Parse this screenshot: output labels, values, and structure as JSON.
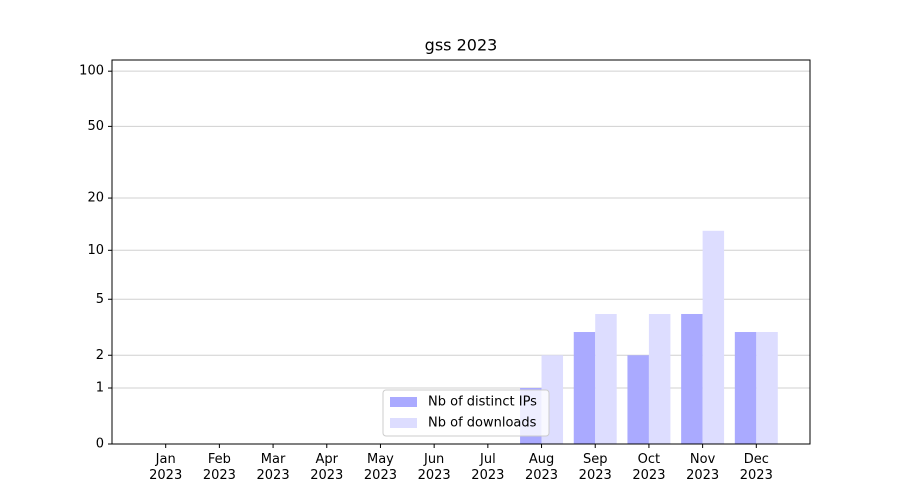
{
  "chart_data": {
    "type": "bar",
    "title": "gss 2023",
    "categories": [
      "Jan\n2023",
      "Feb\n2023",
      "Mar\n2023",
      "Apr\n2023",
      "May\n2023",
      "Jun\n2023",
      "Jul\n2023",
      "Aug\n2023",
      "Sep\n2023",
      "Oct\n2023",
      "Nov\n2023",
      "Dec\n2023"
    ],
    "series": [
      {
        "name": "Nb of distinct IPs",
        "color": "#aaaaff",
        "values": [
          0,
          0,
          0,
          0,
          0,
          0,
          0,
          1,
          3,
          2,
          4,
          3
        ]
      },
      {
        "name": "Nb of downloads",
        "color": "#ddddff",
        "values": [
          0,
          0,
          0,
          0,
          0,
          0,
          0,
          2,
          4,
          4,
          13,
          3
        ]
      }
    ],
    "yscale": "symlog",
    "ylim": [
      0,
      115
    ],
    "yticks": [
      0,
      1,
      2,
      5,
      10,
      20,
      50,
      100
    ],
    "grid": true,
    "legend": "lower center"
  }
}
